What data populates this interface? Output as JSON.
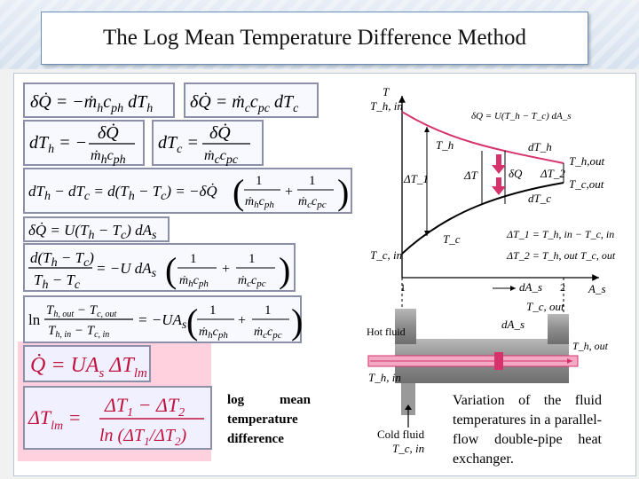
{
  "title": "The Log Mean Temperature Difference Method",
  "equations": {
    "eq1a": "δQ̇ = −ṁ_h c_ph dT_h",
    "eq1b": "δQ̇ = ṁ_c c_pc dT_c",
    "eq2a": "dT_h = −δQ̇/(ṁ_h c_ph)",
    "eq2b": "dT_c = δQ̇/(ṁ_c c_pc)",
    "eq3": "dT_h − dT_c = d(T_h − T_c) = −δQ̇ (1/(ṁ_h c_ph) + 1/(ṁ_c c_pc))",
    "eq4": "δQ̇ = U(T_h − T_c) dA_s",
    "eq5": "d(T_h − T_c)/(T_h − T_c) = −U dA_s (1/(ṁ_h c_ph) + 1/(ṁ_c c_pc))",
    "eq6": "ln (T_h,out − T_c,out)/(T_h,in − T_c,in) = −UA_s (1/(ṁ_h c_ph) + 1/(ṁ_c c_pc))",
    "eq7": "Q̇ = UA_s ΔT_lm",
    "eq8": "ΔT_lm = (ΔT_1 − ΔT_2)/ln(ΔT_1/ΔT_2)"
  },
  "captions": {
    "lmtd": "log mean temperature difference",
    "figure": "Variation of the fluid temperatures in a parallel-flow double-pipe heat exchanger."
  },
  "diagram": {
    "axis_t": "T",
    "axis_as": "A_s",
    "th_in": "T_h, in",
    "tc_in": "T_c, in",
    "th_out": "T_h,out",
    "tc_out": "T_c,out",
    "th": "T_h",
    "tc": "T_c",
    "dq_eq": "δQ = U(T_h − T_c) dA_s",
    "dth": "dT_h",
    "dtc": "dT_c",
    "dq": "δQ",
    "dt1": "ΔT_1",
    "dt2": "ΔT_2",
    "dt": "ΔT",
    "dt1_eq": "ΔT_1 = T_h, in − T_c, in",
    "dt2_eq": "ΔT_2 = T_h, out T_c, out",
    "one": "1",
    "two": "2",
    "das": "dA_s",
    "tc_out2": "T_c, out",
    "hot_fluid": "Hot fluid",
    "cold_fluid": "Cold fluid",
    "th_out2": "T_h, out",
    "th_in2": "T_h, in",
    "tc_in2": "T_c, in",
    "das2": "dA_s"
  },
  "colors": {
    "hot_curve": "#d6336c",
    "pink_highlight": "#ffd1de",
    "box_border": "#8b8fa7"
  }
}
